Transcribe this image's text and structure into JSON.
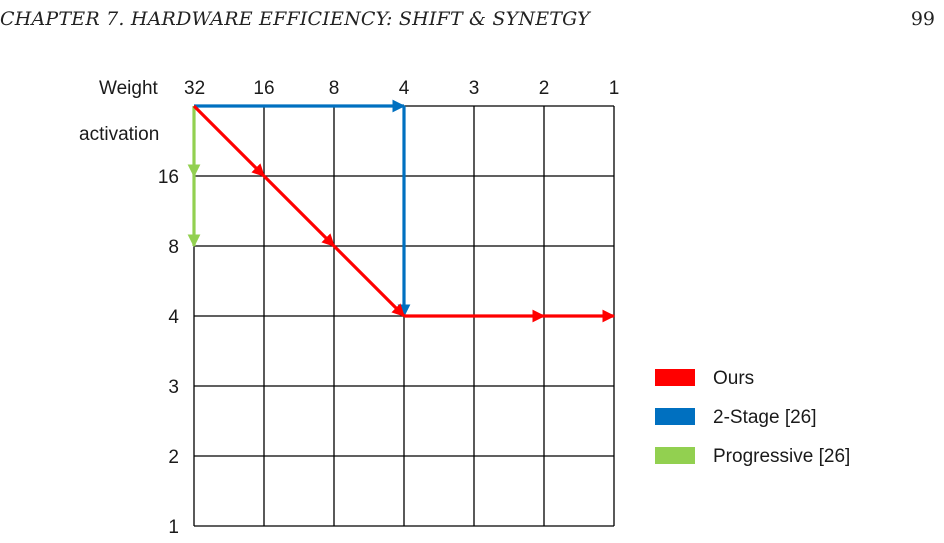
{
  "header": {
    "chapter_title": "CHAPTER 7.  HARDWARE EFFICIENCY: SHIFT & SYNETGY",
    "page_number": "99"
  },
  "figure": {
    "weight_label": "Weight",
    "activation_label": "activation",
    "weight_ticks": [
      "32",
      "16",
      "8",
      "4",
      "3",
      "2",
      "1"
    ],
    "activation_ticks": [
      "16",
      "8",
      "4",
      "3",
      "2",
      "1"
    ],
    "paths": [
      {
        "name": "Ours",
        "color": "#ff0000",
        "points": [
          [
            "32",
            "32"
          ],
          [
            "16",
            "16"
          ],
          [
            "8",
            "8"
          ],
          [
            "4",
            "4"
          ],
          [
            "2",
            "4"
          ],
          [
            "1",
            "4"
          ]
        ]
      },
      {
        "name": "2-Stage [26]",
        "color": "#0070c0",
        "points": [
          [
            "32",
            "32"
          ],
          [
            "4",
            "32"
          ],
          [
            "4",
            "4"
          ]
        ]
      },
      {
        "name": "Progressive [26]",
        "color": "#92d050",
        "points": [
          [
            "32",
            "32"
          ],
          [
            "32",
            "16"
          ],
          [
            "32",
            "8"
          ]
        ]
      }
    ],
    "legend": [
      {
        "label": "Ours",
        "color": "#ff0000"
      },
      {
        "label": "2-Stage [26]",
        "color": "#0070c0"
      },
      {
        "label": "Progressive [26]",
        "color": "#92d050"
      }
    ]
  }
}
